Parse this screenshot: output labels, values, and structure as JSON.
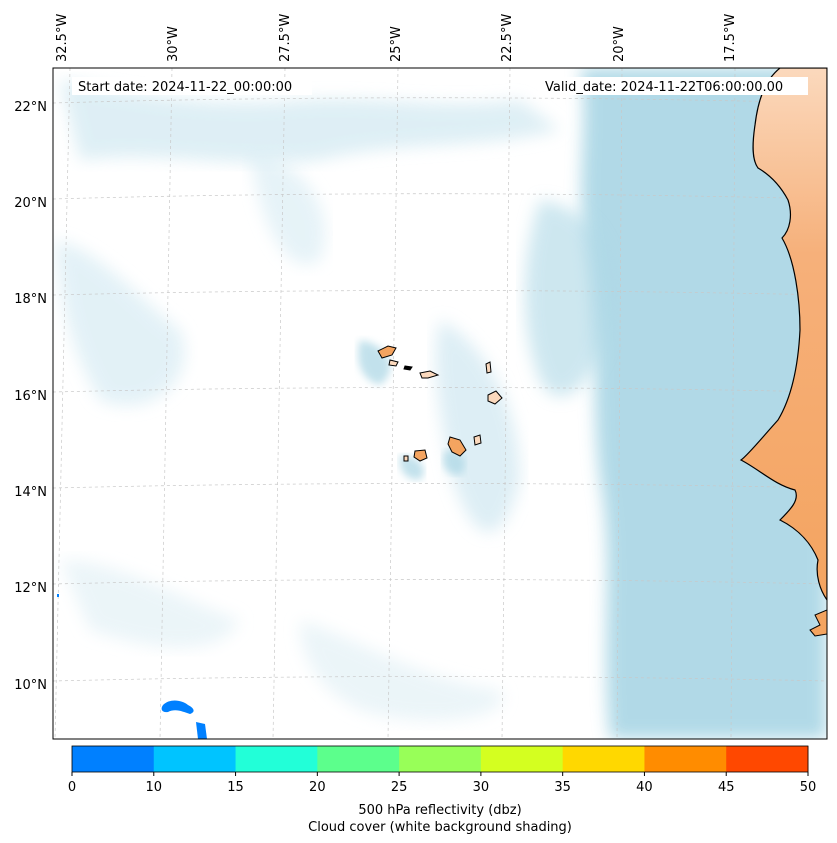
{
  "header": {
    "start_date": "Start date: 2024-11-22_00:00:00",
    "valid_date": "Valid_date: 2024-11-22T06:00:00.00"
  },
  "axes": {
    "lon_labels": [
      "32.5°W",
      "30°W",
      "27.5°W",
      "25°W",
      "22.5°W",
      "20°W",
      "17.5°W"
    ],
    "lat_labels": [
      "22°N",
      "20°N",
      "18°N",
      "16°N",
      "14°N",
      "12°N",
      "10°N"
    ]
  },
  "colorbar": {
    "ticks": [
      "0",
      "10",
      "15",
      "20",
      "25",
      "30",
      "35",
      "40",
      "45",
      "50"
    ],
    "colors": [
      "#0080ff",
      "#00c4ff",
      "#22ffd8",
      "#5cff8c",
      "#98ff58",
      "#d4ff20",
      "#ffd800",
      "#ff8c00",
      "#ff4800"
    ],
    "label_line1": "500 hPa reflectivity (dbz)",
    "label_line2": "Cloud cover (white background shading)"
  },
  "colors": {
    "ocean_cloud": "#add8e6",
    "land": "#f4a460",
    "coastline": "#000000"
  }
}
